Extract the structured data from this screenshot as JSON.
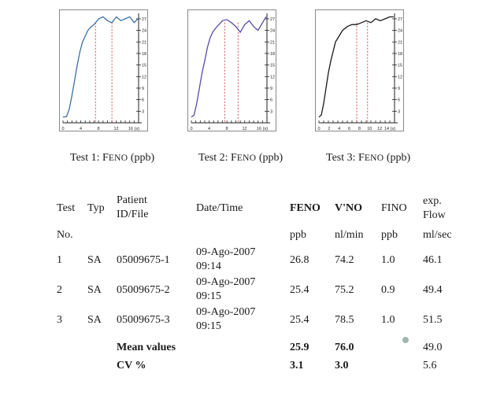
{
  "charts": [
    {
      "caption_prefix": "Test 1: F",
      "caption_smallcaps": "ENO",
      "caption_suffix": " (ppb)",
      "line_color": "#3a6fa6",
      "marker_color": "#cc2a2a",
      "x_ticks": [
        "0",
        "4",
        "8",
        "12",
        "16 (s)"
      ],
      "y_ticks": [
        "27",
        "24",
        "21",
        "18",
        "15",
        "12",
        "9",
        "6",
        "3"
      ],
      "chart_data": {
        "type": "line",
        "xlim": [
          0,
          17
        ],
        "ylim": [
          0,
          28
        ],
        "x": [
          0,
          0.8,
          1.4,
          2.0,
          2.6,
          3.2,
          3.8,
          4.4,
          5.0,
          5.6,
          6.2,
          7.0,
          8.0,
          9.0,
          10.0,
          11.0,
          12.0,
          13.0,
          14.0,
          15.0,
          16.0,
          16.8
        ],
        "y": [
          1.5,
          1.6,
          3.5,
          7,
          11,
          15,
          18.5,
          21,
          22.5,
          24,
          24.8,
          25.5,
          27,
          27.5,
          26.5,
          26,
          27.5,
          26.5,
          27,
          27.5,
          26,
          27
        ],
        "markers": [
          7.3,
          11.0
        ]
      }
    },
    {
      "caption_prefix": "Test 2: F",
      "caption_smallcaps": "ENO",
      "caption_suffix": " (ppb)",
      "line_color": "#5a4aa8",
      "marker_color": "#cc2a2a",
      "x_ticks": [
        "0",
        "4",
        "8",
        "12",
        "16 (s)"
      ],
      "y_ticks": [
        "27",
        "24",
        "21",
        "18",
        "15",
        "12",
        "9",
        "6",
        "3"
      ],
      "chart_data": {
        "type": "line",
        "xlim": [
          0,
          17
        ],
        "ylim": [
          0,
          28
        ],
        "x": [
          0,
          0.6,
          1.2,
          1.8,
          2.4,
          3.0,
          3.6,
          4.2,
          4.8,
          5.4,
          6.2,
          7.0,
          8.0,
          9.0,
          10.0,
          11.0,
          12.0,
          13.0,
          14.0,
          15.0,
          16.0,
          16.8
        ],
        "y": [
          1.5,
          2,
          5,
          9,
          13,
          16,
          19.5,
          22,
          23.5,
          24.5,
          25.5,
          26.5,
          26.8,
          26,
          25,
          23.5,
          25.5,
          26.5,
          25,
          24,
          26,
          27.5
        ],
        "markers": [
          7.5,
          10.5
        ]
      }
    },
    {
      "caption_prefix": "Test 3: F",
      "caption_smallcaps": "ENO",
      "caption_suffix": " (ppb)",
      "line_color": "#1a1a1a",
      "marker_color": "#cc2a2a",
      "x_ticks": [
        "0",
        "2",
        "4",
        "6",
        "8",
        "10",
        "12",
        "14 (s)"
      ],
      "y_ticks": [
        "27",
        "24",
        "21",
        "18",
        "15",
        "12",
        "9",
        "6",
        "3"
      ],
      "chart_data": {
        "type": "line",
        "xlim": [
          0,
          16
        ],
        "ylim": [
          0,
          28
        ],
        "x": [
          0,
          0.5,
          1.0,
          1.5,
          2.0,
          2.5,
          3.0,
          3.5,
          4.0,
          4.5,
          5.0,
          6.0,
          7.0,
          8.0,
          9.0,
          10.0,
          11.0,
          12.0,
          13.0,
          14.0,
          15.0,
          15.8
        ],
        "y": [
          1.5,
          2,
          5,
          9,
          13,
          16,
          18.5,
          21,
          22,
          23,
          24,
          25,
          25.5,
          25.5,
          26,
          26.5,
          26,
          27,
          26.5,
          27,
          27.5,
          27.5
        ],
        "markers": [
          8.0,
          10.3
        ]
      }
    }
  ],
  "table": {
    "headers": {
      "test": "Test",
      "typ": "Typ",
      "patient_1": "Patient",
      "patient_2": "ID/File",
      "date": "Date/Time",
      "feno": "FENO",
      "vno": "V'NO",
      "fino": "FINO",
      "flow_1": "exp.",
      "flow_2": "Flow"
    },
    "units": {
      "test": "No.",
      "feno": "ppb",
      "vno": "nl/min",
      "fino": "ppb",
      "flow": "ml/sec"
    },
    "rows": [
      {
        "test": "1",
        "typ": "SA",
        "patient": "05009675-1",
        "date": "09-Ago-2007",
        "time": "09:14",
        "feno": "26.8",
        "vno": "74.2",
        "fino": "1.0",
        "flow": "46.1"
      },
      {
        "test": "2",
        "typ": "SA",
        "patient": "05009675-2",
        "date": "09-Ago-2007",
        "time": "09:15",
        "feno": "25.4",
        "vno": "75.2",
        "fino": "0.9",
        "flow": "49.4"
      },
      {
        "test": "3",
        "typ": "SA",
        "patient": "05009675-3",
        "date": "09-Ago-2007",
        "time": "09:15",
        "feno": "25.4",
        "vno": "78.5",
        "fino": "1.0",
        "flow": "51.5"
      }
    ],
    "mean": {
      "label": "Mean values",
      "feno": "25.9",
      "vno": "76.0",
      "flow": "49.0"
    },
    "cv": {
      "label": "CV %",
      "feno": "3.1",
      "vno": "3.0",
      "flow": "5.6"
    }
  }
}
